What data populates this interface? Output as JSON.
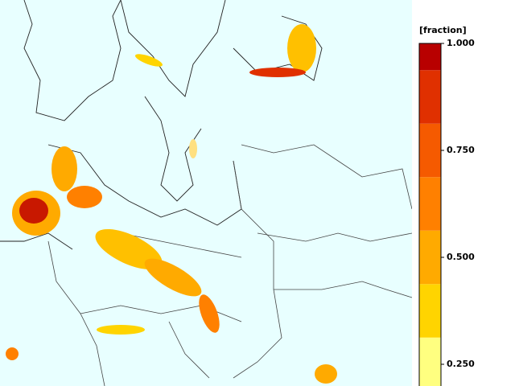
{
  "chart_data": {
    "type": "map",
    "colorbar_label": "[fraction]",
    "levels": [
      0.1875,
      0.3125,
      0.4375,
      0.5625,
      0.6875,
      0.8125,
      0.9375,
      1
    ],
    "colors": [
      "#ffff80",
      "#ffd400",
      "#ffaa00",
      "#ff8000",
      "#f55a00",
      "#e03000",
      "#b80000"
    ],
    "clim": [
      0.1875,
      1
    ],
    "cticks": [
      {
        "value": 1,
        "label": "1.000"
      },
      {
        "value": 0.75,
        "label": "0.750"
      },
      {
        "value": 0.5,
        "label": "0.500"
      },
      {
        "value": 0.25,
        "label": "0.250"
      }
    ]
  }
}
